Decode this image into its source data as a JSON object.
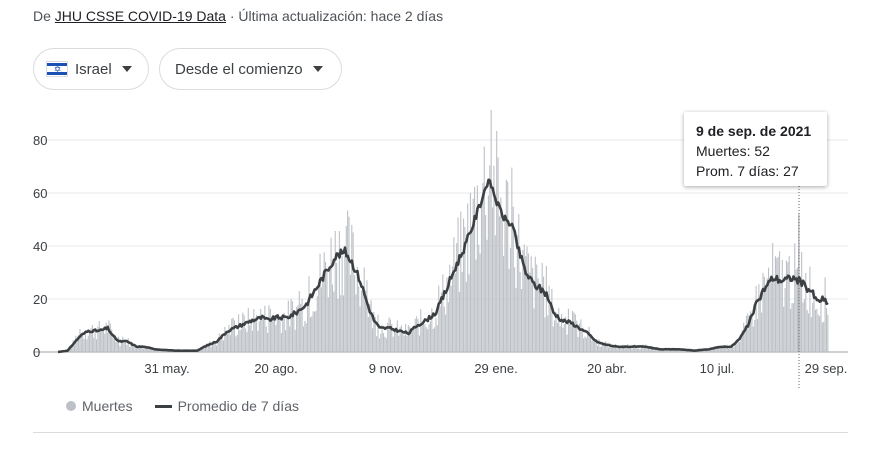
{
  "header": {
    "source_prefix": "De ",
    "source_link": "JHU CSSE COVID-19 Data",
    "source_suffix": " · Última actualización: hace 2 días"
  },
  "filters": {
    "country": "Israel",
    "range": "Desde el comienzo"
  },
  "legend": {
    "bars": "Muertes",
    "line": "Promedio de 7 días"
  },
  "tooltip": {
    "date": "9 de sep. de 2021",
    "deaths": "Muertes: 52",
    "avg": "Prom. 7 días: 27"
  },
  "colors": {
    "bars": "#bdc1c6",
    "line": "#3c4043",
    "grid": "#e8eaed"
  },
  "chart_data": {
    "type": "bar",
    "title": "",
    "ylim": [
      0,
      90
    ],
    "y_ticks": [
      "0",
      "20",
      "40",
      "60",
      "80"
    ],
    "x_ticks": [
      "31 may.",
      "20 ago.",
      "9 nov.",
      "29 ene.",
      "20 abr.",
      "10 jul.",
      "29 sep."
    ],
    "date_range": [
      "2020-03-21",
      "2021-09-30"
    ],
    "highlight": {
      "date": "2021-09-09",
      "deaths": 52,
      "avg": 27
    },
    "series": [
      {
        "name": "Prom. 7 días",
        "values_by_date": [
          [
            "2020-03-21",
            0
          ],
          [
            "2020-03-28",
            0.5
          ],
          [
            "2020-04-01",
            3
          ],
          [
            "2020-04-06",
            6
          ],
          [
            "2020-04-12",
            8
          ],
          [
            "2020-04-20",
            8
          ],
          [
            "2020-04-26",
            9
          ],
          [
            "2020-04-30",
            6
          ],
          [
            "2020-05-04",
            4
          ],
          [
            "2020-05-10",
            4
          ],
          [
            "2020-05-17",
            2
          ],
          [
            "2020-05-22",
            2
          ],
          [
            "2020-05-31",
            1
          ],
          [
            "2020-06-14",
            0.5
          ],
          [
            "2020-06-30",
            0.5
          ],
          [
            "2020-07-05",
            2
          ],
          [
            "2020-07-14",
            4
          ],
          [
            "2020-07-22",
            8
          ],
          [
            "2020-07-31",
            10
          ],
          [
            "2020-08-09",
            12
          ],
          [
            "2020-08-16",
            13
          ],
          [
            "2020-08-20",
            12
          ],
          [
            "2020-08-26",
            13
          ],
          [
            "2020-09-03",
            13
          ],
          [
            "2020-09-10",
            15
          ],
          [
            "2020-09-17",
            18
          ],
          [
            "2020-09-24",
            24
          ],
          [
            "2020-10-01",
            30
          ],
          [
            "2020-10-08",
            36
          ],
          [
            "2020-10-15",
            38
          ],
          [
            "2020-10-20",
            34
          ],
          [
            "2020-10-26",
            27
          ],
          [
            "2020-11-01",
            17
          ],
          [
            "2020-11-05",
            12
          ],
          [
            "2020-11-09",
            9
          ],
          [
            "2020-11-16",
            9
          ],
          [
            "2020-11-23",
            8
          ],
          [
            "2020-11-30",
            7
          ],
          [
            "2020-12-06",
            10
          ],
          [
            "2020-12-13",
            12
          ],
          [
            "2020-12-20",
            15
          ],
          [
            "2020-12-27",
            23
          ],
          [
            "2021-01-03",
            32
          ],
          [
            "2021-01-10",
            40
          ],
          [
            "2021-01-15",
            47
          ],
          [
            "2021-01-21",
            56
          ],
          [
            "2021-01-26",
            64
          ],
          [
            "2021-01-29",
            63
          ],
          [
            "2021-02-03",
            55
          ],
          [
            "2021-02-08",
            50
          ],
          [
            "2021-02-13",
            48
          ],
          [
            "2021-02-18",
            38
          ],
          [
            "2021-02-23",
            30
          ],
          [
            "2021-02-28",
            26
          ],
          [
            "2021-03-05",
            24
          ],
          [
            "2021-03-10",
            22
          ],
          [
            "2021-03-15",
            15
          ],
          [
            "2021-03-21",
            12
          ],
          [
            "2021-03-28",
            11
          ],
          [
            "2021-04-03",
            9
          ],
          [
            "2021-04-09",
            7
          ],
          [
            "2021-04-15",
            4
          ],
          [
            "2021-04-20",
            3
          ],
          [
            "2021-04-30",
            2
          ],
          [
            "2021-05-10",
            2
          ],
          [
            "2021-05-20",
            2
          ],
          [
            "2021-06-01",
            1
          ],
          [
            "2021-06-15",
            1
          ],
          [
            "2021-06-25",
            0.5
          ],
          [
            "2021-07-05",
            1
          ],
          [
            "2021-07-15",
            2
          ],
          [
            "2021-07-22",
            2
          ],
          [
            "2021-07-28",
            5
          ],
          [
            "2021-08-03",
            10
          ],
          [
            "2021-08-09",
            18
          ],
          [
            "2021-08-15",
            24
          ],
          [
            "2021-08-21",
            28
          ],
          [
            "2021-08-28",
            27
          ],
          [
            "2021-09-04",
            28
          ],
          [
            "2021-09-09",
            27
          ],
          [
            "2021-09-13",
            25
          ],
          [
            "2021-09-18",
            23
          ],
          [
            "2021-09-22",
            19
          ],
          [
            "2021-09-26",
            20
          ],
          [
            "2021-09-30",
            18
          ]
        ]
      }
    ]
  }
}
